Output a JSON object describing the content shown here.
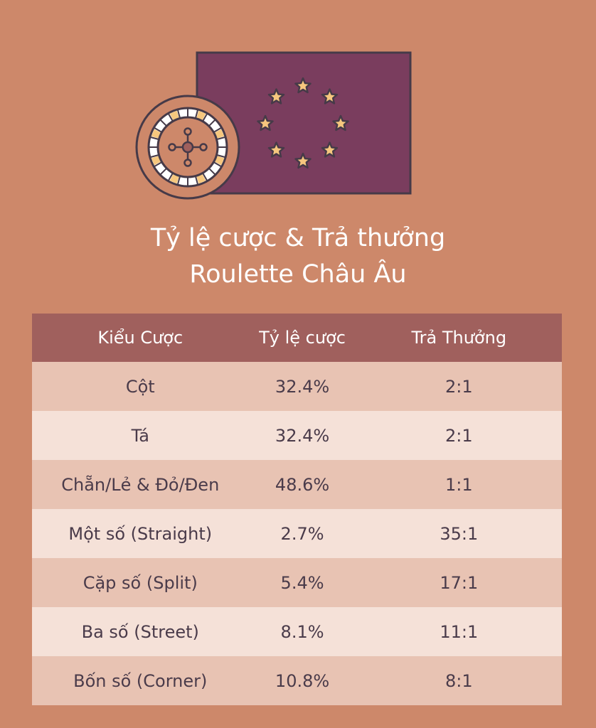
{
  "title": {
    "line1": "Tỷ lệ cược & Trả thưởng",
    "line2": "Roulette Châu Âu"
  },
  "colors": {
    "background": "#CD886A",
    "header": "#A0605D",
    "row_odd": "#E8C3B3",
    "row_even": "#F5E1D8",
    "flag": "#7A3D5E",
    "star": "#F6C77E"
  },
  "icons": [
    "roulette-wheel-icon",
    "eu-flag-icon"
  ],
  "table": {
    "headers": [
      "Kiểu Cược",
      "Tỷ lệ cược",
      "Trả Thưởng"
    ],
    "rows": [
      [
        "Cột",
        "32.4%",
        "2:1"
      ],
      [
        "Tá",
        "32.4%",
        "2:1"
      ],
      [
        "Chẵn/Lẻ & Đỏ/Đen",
        "48.6%",
        "1:1"
      ],
      [
        "Một số (Straight)",
        "2.7%",
        "35:1"
      ],
      [
        "Cặp số (Split)",
        "5.4%",
        "17:1"
      ],
      [
        "Ba số (Street)",
        "8.1%",
        "11:1"
      ],
      [
        "Bốn số (Corner)",
        "10.8%",
        "8:1"
      ]
    ]
  }
}
